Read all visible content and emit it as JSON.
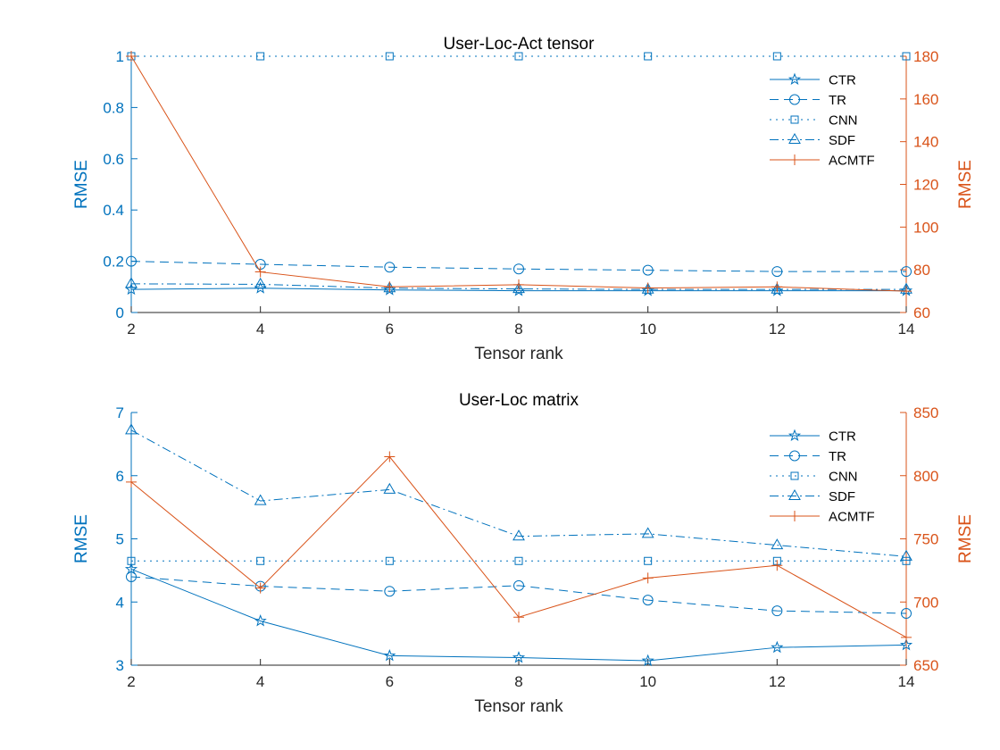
{
  "colors": {
    "left_axis": "#0072BD",
    "right_axis": "#D95319",
    "axis_line": "#262626",
    "legend_text": "#000000"
  },
  "chart_data": [
    {
      "type": "line",
      "title": "User-Loc-Act tensor",
      "xlabel": "Tensor rank",
      "ylabel_left": "RMSE",
      "ylabel_right": "RMSE",
      "x": [
        2,
        4,
        6,
        8,
        10,
        12,
        14
      ],
      "x_ticks": [
        "2",
        "4",
        "6",
        "8",
        "10",
        "12",
        "14"
      ],
      "xlim": [
        2,
        14
      ],
      "ylim_left": [
        0,
        1
      ],
      "yticks_left": [
        "0",
        "0.2",
        "0.4",
        "0.6",
        "0.8",
        "1"
      ],
      "ylim_right": [
        60,
        180
      ],
      "yticks_right": [
        "60",
        "80",
        "100",
        "120",
        "140",
        "160",
        "180"
      ],
      "legend_position": "top-right",
      "series": [
        {
          "name": "CTR",
          "axis": "left",
          "marker": "star",
          "line": "solid",
          "color": "#0072BD",
          "values": [
            0.09,
            0.095,
            0.088,
            0.085,
            0.085,
            0.085,
            0.085
          ]
        },
        {
          "name": "TR",
          "axis": "left",
          "marker": "circle",
          "line": "dashed",
          "color": "#0072BD",
          "values": [
            0.2,
            0.188,
            0.177,
            0.17,
            0.165,
            0.16,
            0.16
          ]
        },
        {
          "name": "CNN",
          "axis": "left",
          "marker": "square",
          "line": "dotted",
          "color": "#0072BD",
          "values": [
            1,
            1,
            1,
            1,
            1,
            1,
            1
          ]
        },
        {
          "name": "SDF",
          "axis": "left",
          "marker": "triangle",
          "line": "dashdot",
          "color": "#0072BD",
          "values": [
            0.112,
            0.11,
            0.095,
            0.092,
            0.09,
            0.09,
            0.09
          ]
        },
        {
          "name": "ACMTF",
          "axis": "right",
          "marker": "plus",
          "line": "solid",
          "color": "#D95319",
          "values": [
            180,
            79,
            72,
            73,
            71.5,
            72,
            70
          ]
        }
      ]
    },
    {
      "type": "line",
      "title": "User-Loc matrix",
      "xlabel": "Tensor rank",
      "ylabel_left": "RMSE",
      "ylabel_right": "RMSE",
      "x": [
        2,
        4,
        6,
        8,
        10,
        12,
        14
      ],
      "x_ticks": [
        "2",
        "4",
        "6",
        "8",
        "10",
        "12",
        "14"
      ],
      "xlim": [
        2,
        14
      ],
      "ylim_left": [
        3,
        7
      ],
      "yticks_left": [
        "3",
        "4",
        "5",
        "6",
        "7"
      ],
      "ylim_right": [
        650,
        850
      ],
      "yticks_right": [
        "650",
        "700",
        "750",
        "800",
        "850"
      ],
      "legend_position": "top-right",
      "series": [
        {
          "name": "CTR",
          "axis": "left",
          "marker": "star",
          "line": "solid",
          "color": "#0072BD",
          "values": [
            4.52,
            3.7,
            3.15,
            3.12,
            3.07,
            3.28,
            3.32
          ]
        },
        {
          "name": "TR",
          "axis": "left",
          "marker": "circle",
          "line": "dashed",
          "color": "#0072BD",
          "values": [
            4.4,
            4.25,
            4.17,
            4.26,
            4.03,
            3.86,
            3.82
          ]
        },
        {
          "name": "CNN",
          "axis": "left",
          "marker": "square",
          "line": "dotted",
          "color": "#0072BD",
          "values": [
            4.65,
            4.65,
            4.65,
            4.65,
            4.65,
            4.65,
            4.65
          ]
        },
        {
          "name": "SDF",
          "axis": "left",
          "marker": "triangle",
          "line": "dashdot",
          "color": "#0072BD",
          "values": [
            6.72,
            5.6,
            5.78,
            5.04,
            5.08,
            4.9,
            4.72
          ]
        },
        {
          "name": "ACMTF",
          "axis": "right",
          "marker": "plus",
          "line": "solid",
          "color": "#D95319",
          "values": [
            795,
            711,
            815,
            688,
            719,
            729,
            672
          ]
        }
      ]
    }
  ]
}
